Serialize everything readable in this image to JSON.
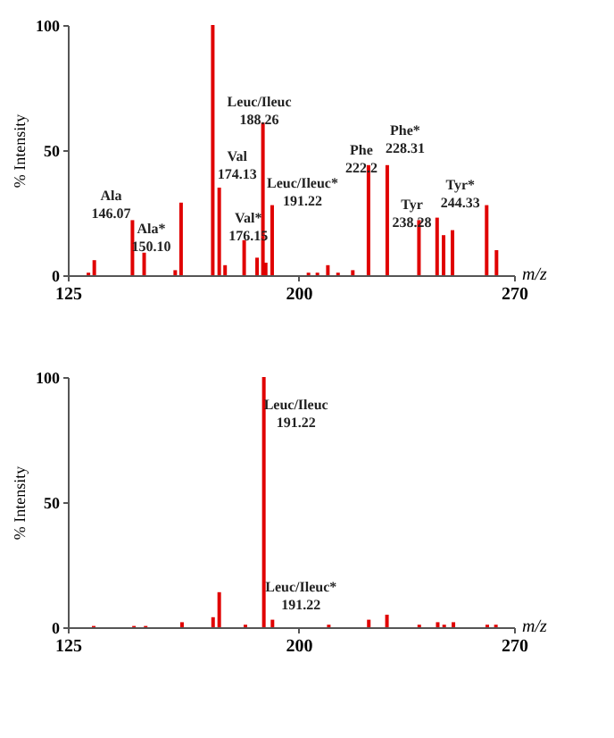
{
  "chart_data": [
    {
      "type": "bar",
      "xlabel": "m/z",
      "ylabel": "% Intensity",
      "xlim": [
        125,
        270
      ],
      "xticks": [
        125,
        200,
        270
      ],
      "ylim": [
        0,
        100
      ],
      "yticks": [
        0,
        50,
        100
      ],
      "grid": false,
      "color": "#e00000",
      "x": [
        131.7,
        133.6,
        146.0,
        149.8,
        159.9,
        161.8,
        172.1,
        174.2,
        176.1,
        182.3,
        186.5,
        188.4,
        189.3,
        191.4,
        203.2,
        206.1,
        209.5,
        212.8,
        217.6,
        222.7,
        228.8,
        239.1,
        245.0,
        247.1,
        250.0,
        261.1,
        264.3
      ],
      "values": [
        1,
        6,
        22,
        9,
        2,
        29,
        100,
        35,
        4,
        14,
        7,
        61,
        5,
        28,
        1,
        1,
        4,
        1,
        2,
        44,
        44,
        22,
        23,
        16,
        18,
        28,
        10
      ],
      "annotations": [
        {
          "text": "Ala\n146.07",
          "x": 146.0,
          "y": 22
        },
        {
          "text": "Ala*\n150.10",
          "x": 149.8,
          "y": 9
        },
        {
          "text": "Leuc/Ileuc\n188.26",
          "x": 188.4,
          "y": 61
        },
        {
          "text": "Val\n174.13",
          "x": 174.2,
          "y": 35
        },
        {
          "text": "Val*\n176.15",
          "x": 176.1,
          "y": 4
        },
        {
          "text": "Leuc/Ileuc*\n191.22",
          "x": 191.4,
          "y": 28
        },
        {
          "text": "Phe\n222.2",
          "x": 222.7,
          "y": 44
        },
        {
          "text": "Phe*\n228.31",
          "x": 228.8,
          "y": 44
        },
        {
          "text": "Tyr\n238.28",
          "x": 239.1,
          "y": 22
        },
        {
          "text": "Tyr*\n244.33",
          "x": 245.0,
          "y": 23
        }
      ]
    },
    {
      "type": "bar",
      "xlabel": "m/z",
      "ylabel": "% Intensity",
      "xlim": [
        125,
        270
      ],
      "xticks": [
        125,
        200,
        270
      ],
      "ylim": [
        0,
        100
      ],
      "yticks": [
        0,
        50,
        100
      ],
      "grid": false,
      "color": "#e00000",
      "x": [
        133.4,
        146.5,
        150.3,
        162.1,
        172.2,
        174.2,
        182.7,
        188.7,
        191.5,
        209.8,
        222.8,
        228.7,
        239.2,
        245.2,
        247.3,
        250.3,
        261.3,
        264.1
      ],
      "values": [
        0.5,
        0.5,
        0.5,
        2,
        4,
        14,
        1,
        100,
        3,
        1,
        3,
        5,
        1,
        2,
        1,
        2,
        1,
        1
      ],
      "annotations": [
        {
          "text": "Leuc/Ileuc\n191.22",
          "x": 188.7,
          "y": 100
        },
        {
          "text": "Leuc/Ileuc*\n191.22",
          "x": 191.5,
          "y": 3
        }
      ]
    }
  ]
}
